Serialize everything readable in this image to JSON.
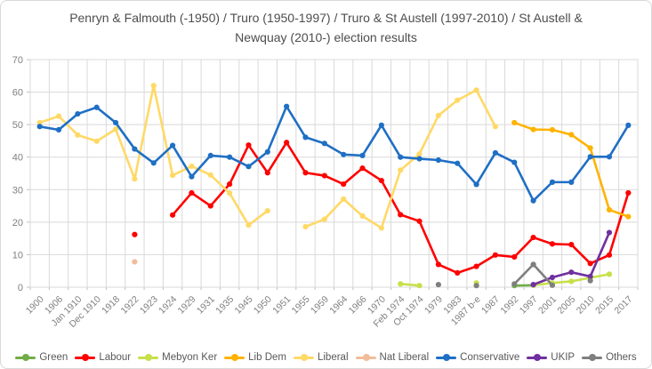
{
  "title": "Penryn & Falmouth (-1950) / Truro (1950-1997) / Truro & St Austell (1997-2010) / St Austell & Newquay (2010-) election results",
  "axis_colors": {
    "grid": "#d9d9d9",
    "tick": "#bfbfbf",
    "label": "#7f7f7f"
  },
  "chart_data": {
    "type": "line",
    "title": "Penryn & Falmouth (-1950) / Truro (1950-1997) / Truro & St Austell (1997-2010) / St Austell & Newquay (2010-) election results",
    "xlabel": "",
    "ylabel": "",
    "ylim": [
      0,
      70
    ],
    "yticks": [
      0,
      10,
      20,
      30,
      40,
      50,
      60,
      70
    ],
    "grid": true,
    "legend_position": "bottom",
    "categories": [
      "1900",
      "1906",
      "Jan 1910",
      "Dec 1910",
      "1918",
      "1922",
      "1923",
      "1924",
      "1929",
      "1931",
      "1935",
      "1945",
      "1950",
      "1951",
      "1955",
      "1959",
      "1964",
      "1966",
      "1970",
      "Feb 1974",
      "Oct 1974",
      "1979",
      "1983",
      "1987 b-e",
      "1987",
      "1992",
      "1997",
      "2001",
      "2005",
      "2010",
      "2015",
      "2017"
    ],
    "series": [
      {
        "name": "Green",
        "color": "#70AD47",
        "values": [
          null,
          null,
          null,
          null,
          null,
          null,
          null,
          null,
          null,
          null,
          null,
          null,
          null,
          null,
          null,
          null,
          null,
          null,
          null,
          null,
          null,
          null,
          null,
          null,
          null,
          0.5,
          0.6,
          null,
          null,
          null,
          null,
          null
        ]
      },
      {
        "name": "Labour",
        "color": "#FF0000",
        "values": [
          null,
          null,
          null,
          null,
          null,
          16.2,
          null,
          22.2,
          29,
          25,
          31.7,
          43.7,
          35.2,
          44.5,
          35.2,
          34.3,
          31.7,
          36.6,
          32.8,
          22.3,
          20.3,
          7,
          4.4,
          6.4,
          9.9,
          9.3,
          15.3,
          13.3,
          13.1,
          7.3,
          9.9,
          29
        ]
      },
      {
        "name": "Mebyon Ker",
        "color": "#C7E04A",
        "values": [
          null,
          null,
          null,
          null,
          null,
          null,
          null,
          null,
          null,
          null,
          null,
          null,
          null,
          null,
          null,
          null,
          null,
          null,
          null,
          1,
          0.5,
          null,
          null,
          1.3,
          null,
          null,
          0.6,
          1.3,
          1.8,
          2.9,
          4,
          null
        ]
      },
      {
        "name": "Lib Dem",
        "color": "#FFB300",
        "values": [
          null,
          null,
          null,
          null,
          null,
          null,
          null,
          null,
          null,
          null,
          null,
          null,
          null,
          null,
          null,
          null,
          null,
          null,
          null,
          null,
          null,
          null,
          null,
          null,
          null,
          50.6,
          48.5,
          48.4,
          46.9,
          42.8,
          23.8,
          21.7
        ]
      },
      {
        "name": "Liberal",
        "color": "#FFD966",
        "values": [
          50.6,
          52.6,
          46.8,
          44.9,
          48.6,
          33.3,
          62,
          34.4,
          37.2,
          34.5,
          28.9,
          19.1,
          23.5,
          null,
          18.6,
          20.9,
          27.1,
          21.9,
          18.2,
          36,
          41,
          52.8,
          57.5,
          60.6,
          49.4,
          null,
          null,
          null,
          null,
          null,
          null,
          null
        ]
      },
      {
        "name": "Nat Liberal",
        "color": "#F2BC9A",
        "values": [
          null,
          null,
          null,
          null,
          null,
          7.8,
          null,
          null,
          null,
          null,
          null,
          null,
          null,
          null,
          null,
          null,
          null,
          null,
          null,
          null,
          null,
          null,
          null,
          null,
          null,
          null,
          null,
          null,
          null,
          null,
          null,
          null
        ]
      },
      {
        "name": "Conservative",
        "color": "#1F6FC4",
        "values": [
          49.4,
          48.4,
          53.3,
          55.3,
          50.6,
          42.5,
          38.2,
          43.6,
          34,
          40.5,
          40,
          37.1,
          41.6,
          55.6,
          46.1,
          44.2,
          40.8,
          40.5,
          49.8,
          40,
          39.5,
          39.1,
          38.1,
          31.6,
          41.3,
          38.4,
          26.6,
          32.3,
          32.3,
          40.1,
          40.1,
          49.8
        ]
      },
      {
        "name": "UKIP",
        "color": "#7030A0",
        "values": [
          null,
          null,
          null,
          null,
          null,
          null,
          null,
          null,
          null,
          null,
          null,
          null,
          null,
          null,
          null,
          null,
          null,
          null,
          null,
          null,
          null,
          null,
          null,
          null,
          null,
          null,
          0.8,
          3,
          4.6,
          3.3,
          16.8,
          null
        ]
      },
      {
        "name": "Others",
        "color": "#7F7F7F",
        "values": [
          null,
          null,
          null,
          null,
          null,
          null,
          null,
          null,
          null,
          null,
          null,
          null,
          null,
          null,
          null,
          null,
          null,
          null,
          null,
          null,
          null,
          0.8,
          null,
          0.5,
          null,
          1,
          7,
          0.6,
          null,
          2,
          null,
          null
        ]
      }
    ]
  }
}
